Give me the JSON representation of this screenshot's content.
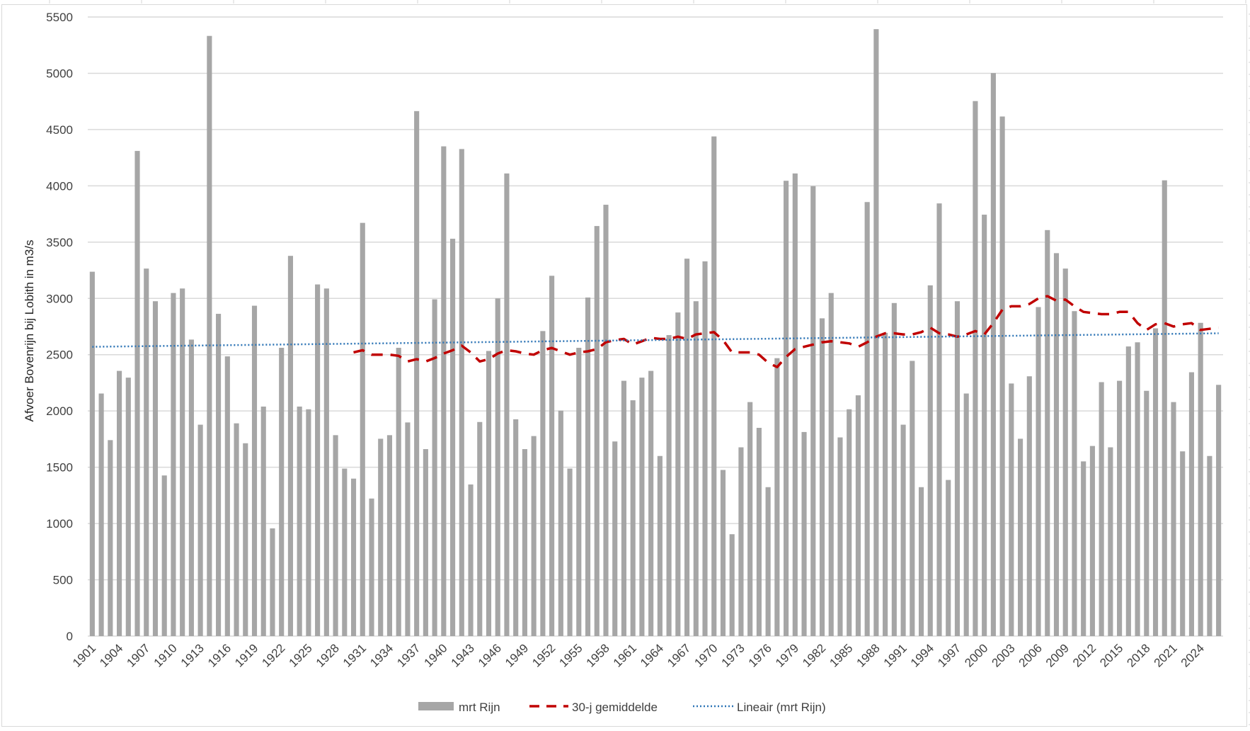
{
  "chart_data": {
    "type": "bar",
    "title": "",
    "xlabel": "",
    "ylabel": "Afvoer Bovenrijn bij Lobith in m3/s",
    "ylim": [
      0,
      5500
    ],
    "yticks": [
      0,
      500,
      1000,
      1500,
      2000,
      2500,
      3000,
      3500,
      4000,
      4500,
      5000,
      5500
    ],
    "grid": true,
    "legend_position": "bottom",
    "x_start": 1901,
    "x_end": 2026,
    "xtick_step": 3,
    "xtick_labels": [
      "1901",
      "1904",
      "1907",
      "1910",
      "1913",
      "1916",
      "1919",
      "1922",
      "1925",
      "1928",
      "1931",
      "1934",
      "1937",
      "1940",
      "1943",
      "1946",
      "1949",
      "1952",
      "1955",
      "1958",
      "1961",
      "1964",
      "1967",
      "1970",
      "1973",
      "1976",
      "1979",
      "1982",
      "1985",
      "1988",
      "1991",
      "1994",
      "1997",
      "2000",
      "2003",
      "2006",
      "2009",
      "2012",
      "2015",
      "2018",
      "2021",
      "2024"
    ],
    "series": [
      {
        "name": "mrt Rijn",
        "type": "bar",
        "color": "#a6a6a6",
        "values": [
          3237,
          2155,
          1741,
          2356,
          2296,
          4310,
          3265,
          2975,
          1427,
          3048,
          3088,
          2634,
          1878,
          5332,
          2863,
          2485,
          1890,
          1713,
          2935,
          2039,
          957,
          2561,
          3378,
          2039,
          2015,
          3124,
          3088,
          1785,
          1488,
          1399,
          3671,
          1222,
          1753,
          1785,
          2561,
          1898,
          4664,
          1661,
          2992,
          4351,
          3530,
          4327,
          1347,
          1902,
          2533,
          3000,
          4110,
          1926,
          1661,
          1777,
          2710,
          3201,
          2003,
          1488,
          2561,
          3008,
          3643,
          3832,
          1729,
          2268,
          2095,
          2296,
          2356,
          1600,
          2674,
          2875,
          3353,
          2975,
          3329,
          4439,
          1476,
          905,
          1677,
          2079,
          1850,
          1323,
          2469,
          4045,
          4110,
          1813,
          3997,
          2823,
          3048,
          1765,
          2015,
          2139,
          3856,
          5392,
          2694,
          2959,
          1878,
          2445,
          1323,
          3116,
          3844,
          1387,
          2975,
          2155,
          4753,
          3744,
          5002,
          4616,
          2244,
          1753,
          2308,
          2923,
          3607,
          3402,
          3265,
          2887,
          1552,
          1689,
          2256,
          1677,
          2268,
          2573,
          2610,
          2179,
          2734,
          4049,
          2079,
          1641,
          2344,
          2783,
          1600,
          2232
        ]
      },
      {
        "name": "30-j gemiddelde",
        "type": "line",
        "style": "dashed",
        "color": "#c00000",
        "start_year": 1930,
        "values": [
          2520,
          2540,
          2500,
          2500,
          2500,
          2490,
          2440,
          2460,
          2440,
          2470,
          2510,
          2540,
          2580,
          2520,
          2440,
          2460,
          2510,
          2540,
          2530,
          2510,
          2500,
          2540,
          2560,
          2530,
          2500,
          2520,
          2530,
          2550,
          2610,
          2630,
          2640,
          2590,
          2620,
          2650,
          2640,
          2640,
          2660,
          2640,
          2680,
          2690,
          2700,
          2630,
          2520,
          2520,
          2520,
          2500,
          2430,
          2390,
          2480,
          2550,
          2570,
          2590,
          2610,
          2620,
          2610,
          2600,
          2570,
          2610,
          2660,
          2690,
          2690,
          2680,
          2680,
          2700,
          2740,
          2690,
          2680,
          2660,
          2680,
          2710,
          2680,
          2780,
          2900,
          2930,
          2930,
          2950,
          3000,
          3020,
          2980,
          2990,
          2930,
          2880,
          2870,
          2860,
          2860,
          2880,
          2880,
          2780,
          2720,
          2770,
          2780,
          2750,
          2770,
          2780,
          2720,
          2730,
          2740
        ]
      },
      {
        "name": "Lineair (mrt Rijn)",
        "type": "line",
        "style": "dotted",
        "color": "#2e75b6",
        "start_value": 2570,
        "end_value": 2690
      }
    ]
  },
  "legend": {
    "items": [
      {
        "label": "mrt Rijn"
      },
      {
        "label": "30-j gemiddelde"
      },
      {
        "label": "Lineair (mrt Rijn)"
      }
    ]
  },
  "axis": {
    "ylabel": "Afvoer Bovenrijn bij Lobith in m3/s"
  }
}
